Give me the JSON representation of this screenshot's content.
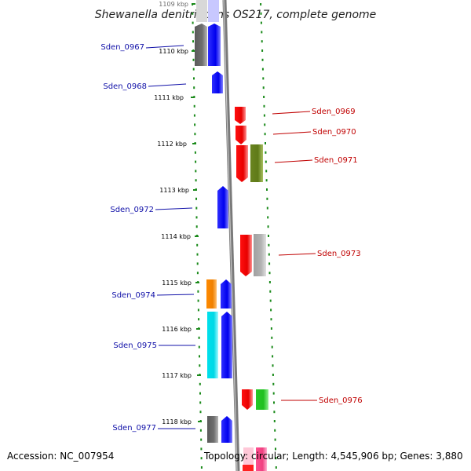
{
  "title": "Shewanella denitrificans OS217, complete genome",
  "accession": "Accession: NC_007954",
  "topology": "Topology: circular; Length: 4,545,906 bp; Genes: 3,880",
  "kbp_labels": [
    {
      "text": "1109 kbp",
      "partial": true
    },
    {
      "text": "1110 kbp"
    },
    {
      "text": "1111 kbp"
    },
    {
      "text": "1112 kbp"
    },
    {
      "text": "1113 kbp"
    },
    {
      "text": "1114 kbp"
    },
    {
      "text": "1115 kbp"
    },
    {
      "text": "1116 kbp"
    },
    {
      "text": "1117 kbp"
    },
    {
      "text": "1118 kbp"
    }
  ],
  "genes_left": [
    {
      "label": "Sden_0967"
    },
    {
      "label": "Sden_0968"
    },
    {
      "label": "Sden_0972"
    },
    {
      "label": "Sden_0974"
    },
    {
      "label": "Sden_0975"
    },
    {
      "label": "Sden_0977"
    }
  ],
  "genes_right": [
    {
      "label": "Sden_0969"
    },
    {
      "label": "Sden_0970"
    },
    {
      "label": "Sden_0971"
    },
    {
      "label": "Sden_0973"
    },
    {
      "label": "Sden_0976"
    }
  ],
  "colors": {
    "blue": "#1a1aff",
    "gray": "#707070",
    "light_gray": "#b0b0b0",
    "red": "#ff0000",
    "olive": "#708a20",
    "orange": "#ff9000",
    "cyan": "#00e8f0",
    "green": "#30d030",
    "pink": "#ff60a0",
    "tick_green": "#1a8a1a",
    "backbone": "#808080"
  }
}
